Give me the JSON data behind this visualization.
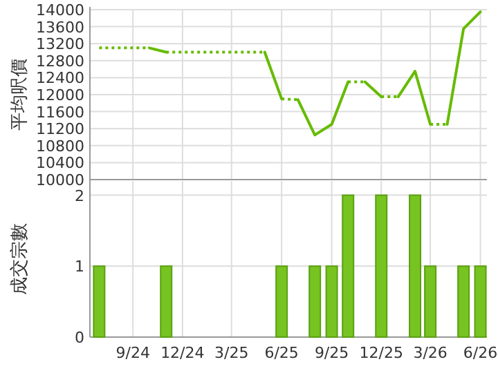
{
  "chart_data": [
    {
      "type": "line",
      "ylabel": "平均呎價",
      "xlim": [
        "2024-06-14",
        "2026-06-13"
      ],
      "ylim": [
        10000,
        14000
      ],
      "xticks": [
        {
          "value": "2024-09",
          "label": null
        },
        {
          "value": "2024-12",
          "label": null
        },
        {
          "value": "2025-03",
          "label": null
        },
        {
          "value": "2025-06",
          "label": null
        },
        {
          "value": "2025-09",
          "label": null
        },
        {
          "value": "2025-12",
          "label": null
        },
        {
          "value": "2026-03",
          "label": null
        },
        {
          "value": "2026-06",
          "label": null
        }
      ],
      "yticks": [
        10000,
        10400,
        10800,
        11200,
        11600,
        12000,
        12400,
        12800,
        13200,
        13600,
        14000
      ],
      "grid": true,
      "tick_labels": "y",
      "series": [
        {
          "color": "#66bb00",
          "line_style": "dotted",
          "x": [
            "2024-07",
            "2024-10"
          ],
          "values": [
            13100,
            13100
          ]
        },
        {
          "color": "#66bb00",
          "line_style": "solid",
          "x": [
            "2024-10",
            "2024-11"
          ],
          "values": [
            13100,
            13000
          ]
        },
        {
          "color": "#66bb00",
          "line_style": "dotted",
          "x": [
            "2024-11",
            "2025-05"
          ],
          "values": [
            13000,
            13000
          ]
        },
        {
          "color": "#66bb00",
          "line_style": "solid",
          "x": [
            "2025-05",
            "2025-06"
          ],
          "values": [
            13000,
            11900
          ]
        },
        {
          "color": "#66bb00",
          "line_style": "dotted",
          "x": [
            "2025-06",
            "2025-07"
          ],
          "values": [
            11900,
            11880
          ]
        },
        {
          "color": "#66bb00",
          "line_style": "solid",
          "x": [
            "2025-07",
            "2025-08",
            "2025-09",
            "2025-10"
          ],
          "values": [
            11880,
            11050,
            11300,
            12300
          ]
        },
        {
          "color": "#66bb00",
          "line_style": "dotted",
          "x": [
            "2025-10",
            "2025-11"
          ],
          "values": [
            12300,
            12300
          ]
        },
        {
          "color": "#66bb00",
          "line_style": "solid",
          "x": [
            "2025-11",
            "2025-12"
          ],
          "values": [
            12300,
            11950
          ]
        },
        {
          "color": "#66bb00",
          "line_style": "dotted",
          "x": [
            "2025-12",
            "2026-01"
          ],
          "values": [
            11950,
            11950
          ]
        },
        {
          "color": "#66bb00",
          "line_style": "solid",
          "x": [
            "2026-01",
            "2026-02",
            "2026-03"
          ],
          "values": [
            11950,
            12550,
            11300
          ]
        },
        {
          "color": "#66bb00",
          "line_style": "dotted",
          "x": [
            "2026-03",
            "2026-04"
          ],
          "values": [
            11300,
            11300
          ]
        },
        {
          "color": "#66bb00",
          "line_style": "solid",
          "x": [
            "2026-04",
            "2026-05",
            "2026-06"
          ],
          "values": [
            11300,
            13550,
            13950
          ]
        }
      ]
    },
    {
      "type": "bar",
      "ylabel": "成交宗數",
      "xlim": [
        "2024-06-14",
        "2026-06-13"
      ],
      "ylim": [
        0,
        2.2
      ],
      "xticks": [
        {
          "value": "2024-09",
          "label": "9/24"
        },
        {
          "value": "2024-12",
          "label": "12/24"
        },
        {
          "value": "2025-03",
          "label": "3/25"
        },
        {
          "value": "2025-06",
          "label": "6/25"
        },
        {
          "value": "2025-09",
          "label": "9/25"
        },
        {
          "value": "2025-12",
          "label": "12/25"
        },
        {
          "value": "2026-03",
          "label": "3/26"
        },
        {
          "value": "2026-06",
          "label": "6/26"
        }
      ],
      "yticks": [
        0,
        1,
        2
      ],
      "grid": true,
      "color": "#77c322",
      "x": [
        "2024-07",
        "2024-11",
        "2025-06",
        "2025-08",
        "2025-09",
        "2025-10",
        "2025-12",
        "2026-02",
        "2026-03",
        "2026-05",
        "2026-06"
      ],
      "values": [
        1,
        1,
        1,
        1,
        1,
        2,
        2,
        2,
        1,
        1,
        1
      ]
    }
  ]
}
